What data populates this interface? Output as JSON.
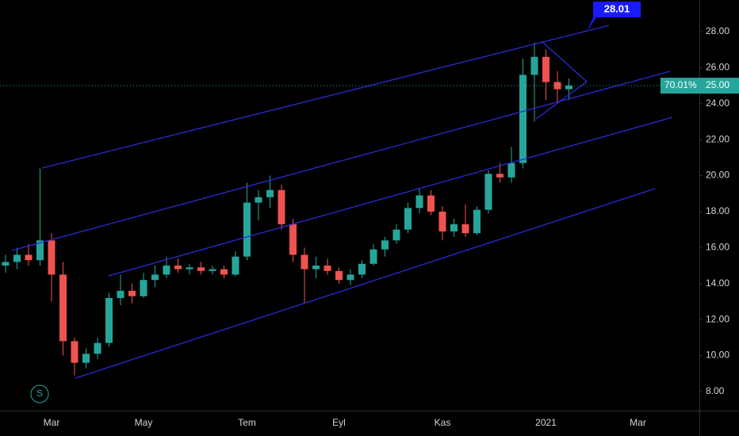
{
  "chart_data": {
    "type": "candlestick",
    "categories": [
      null,
      null,
      null,
      null,
      "Mar",
      null,
      null,
      null,
      null,
      null,
      null,
      null,
      "May",
      null,
      null,
      null,
      null,
      null,
      null,
      null,
      null,
      "Tem",
      null,
      null,
      null,
      null,
      null,
      null,
      null,
      "Eyl",
      null,
      null,
      null,
      null,
      null,
      null,
      null,
      null,
      "Kas",
      null,
      null,
      null,
      null,
      null,
      null,
      null,
      null,
      "2021",
      null,
      null,
      null,
      null,
      null,
      null,
      null,
      "Mar",
      null,
      null,
      null,
      null
    ],
    "open": [
      15.0,
      15.2,
      15.6,
      15.3,
      16.4,
      14.5,
      10.8,
      9.6,
      10.1,
      10.7,
      13.2,
      13.6,
      13.3,
      14.2,
      14.5,
      15.0,
      14.8,
      14.9,
      14.7,
      14.8,
      14.5,
      15.5,
      18.5,
      18.8,
      19.2,
      17.3,
      15.6,
      14.8,
      15.0,
      14.7,
      14.2,
      14.5,
      15.1,
      15.9,
      16.4,
      17.0,
      18.2,
      18.9,
      18.0,
      16.9,
      17.3,
      16.8,
      18.1,
      20.1,
      19.9,
      20.7,
      25.6,
      26.6,
      25.2,
      24.8,
      null,
      null,
      null,
      null,
      null,
      null,
      null,
      null,
      null,
      null
    ],
    "high": [
      15.6,
      16.0,
      16.2,
      20.4,
      16.8,
      15.2,
      11.0,
      10.4,
      11.0,
      13.5,
      14.5,
      14.0,
      14.6,
      15.0,
      15.5,
      15.4,
      15.1,
      15.2,
      15.0,
      15.0,
      15.8,
      19.6,
      19.2,
      20.0,
      19.5,
      17.6,
      16.0,
      15.5,
      15.4,
      14.9,
      14.8,
      15.3,
      16.2,
      16.6,
      17.3,
      18.5,
      19.3,
      19.2,
      18.3,
      17.6,
      18.4,
      18.3,
      20.3,
      20.7,
      21.6,
      26.5,
      27.4,
      27.0,
      25.8,
      25.4,
      null,
      null,
      null,
      null,
      null,
      null,
      null,
      null,
      null,
      null
    ],
    "low": [
      14.6,
      14.8,
      15.0,
      15.0,
      13.0,
      10.0,
      8.9,
      9.3,
      9.8,
      10.5,
      12.8,
      12.9,
      13.2,
      13.8,
      14.3,
      14.6,
      14.5,
      14.5,
      14.5,
      14.3,
      14.4,
      15.3,
      17.5,
      18.2,
      17.0,
      15.2,
      12.9,
      14.3,
      14.5,
      14.0,
      13.9,
      14.3,
      15.0,
      15.5,
      16.2,
      16.8,
      17.9,
      17.8,
      16.4,
      16.6,
      16.6,
      16.7,
      17.9,
      19.6,
      19.6,
      20.4,
      23.0,
      24.2,
      24.0,
      24.2,
      null,
      null,
      null,
      null,
      null,
      null,
      null,
      null,
      null,
      null
    ],
    "close": [
      15.2,
      15.6,
      15.3,
      16.4,
      14.5,
      10.8,
      9.6,
      10.1,
      10.7,
      13.2,
      13.6,
      13.3,
      14.2,
      14.5,
      15.0,
      14.8,
      14.9,
      14.7,
      14.8,
      14.5,
      15.5,
      18.5,
      18.8,
      19.2,
      17.3,
      15.6,
      14.8,
      15.0,
      14.7,
      14.2,
      14.5,
      15.1,
      15.9,
      16.4,
      17.0,
      18.2,
      18.9,
      18.0,
      16.9,
      17.3,
      16.8,
      18.1,
      20.1,
      19.9,
      20.7,
      25.6,
      26.6,
      25.2,
      24.8,
      25.0,
      null,
      null,
      null,
      null,
      null,
      null,
      null,
      null,
      null,
      null
    ],
    "up_color": "#26a69a",
    "down_color": "#ef5350",
    "ylim": [
      6.94,
      29.76
    ],
    "yticks": [
      {
        "value": 8,
        "label": "8.00"
      },
      {
        "value": 10,
        "label": "10.00"
      },
      {
        "value": 12,
        "label": "12.00"
      },
      {
        "value": 14,
        "label": "14.00"
      },
      {
        "value": 16,
        "label": "16.00"
      },
      {
        "value": 18,
        "label": "18.00"
      },
      {
        "value": 20,
        "label": "20.00"
      },
      {
        "value": 22,
        "label": "22.00"
      },
      {
        "value": 24,
        "label": "24.00"
      },
      {
        "value": 26,
        "label": "26.00"
      },
      {
        "value": 28,
        "label": "28.00"
      }
    ],
    "last_price": {
      "value": 25,
      "label": "25.00"
    },
    "last_change": "70.01%",
    "callout_label": "28.01",
    "badge": "S"
  }
}
